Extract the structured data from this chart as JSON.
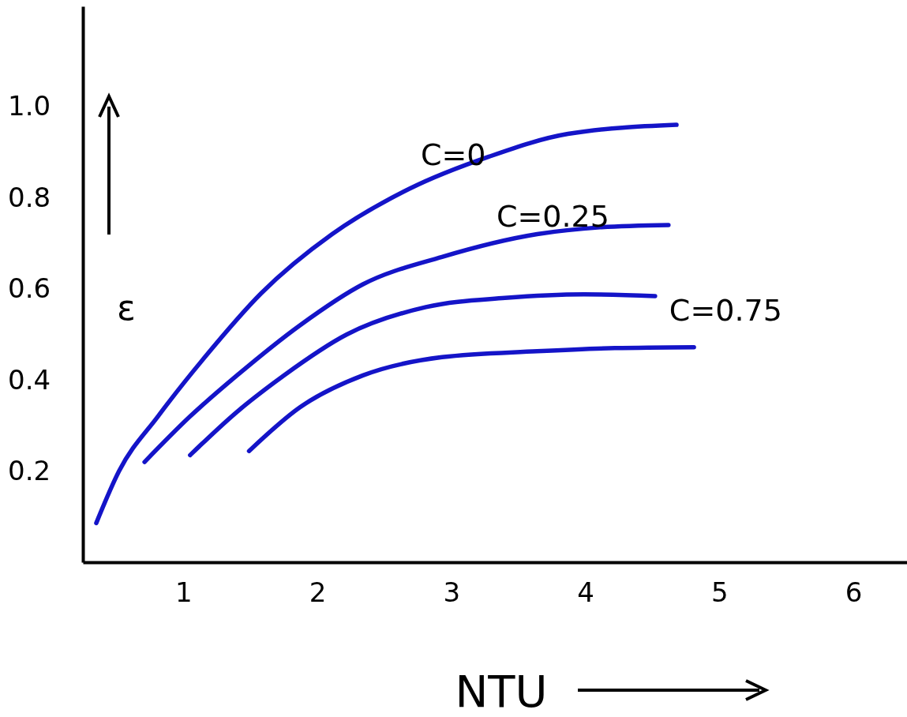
{
  "chart_data": {
    "type": "line",
    "xlabel": "NTU",
    "ylabel": "ε",
    "xlim": [
      0.25,
      6.4
    ],
    "ylim": [
      0,
      1.22
    ],
    "xticks": [
      1,
      2,
      3,
      4,
      5,
      6
    ],
    "yticks": [
      0.2,
      0.4,
      0.6,
      0.8,
      {
        "value": 1,
        "label": "1.0"
      }
    ],
    "grid": false,
    "marker": "none",
    "line_style": "solid",
    "series": [
      {
        "name": "C=0",
        "color": "#1414c8",
        "x": [
          0.35,
          0.52,
          0.81,
          1.16,
          1.58,
          2.11,
          2.69,
          3.28,
          3.87,
          4.68
        ],
        "values": [
          0.086,
          0.2,
          0.32,
          0.45,
          0.59,
          0.72,
          0.82,
          0.89,
          0.94,
          0.96
        ]
      },
      {
        "name": "C=0.25",
        "color": "#1414c8",
        "x": [
          0.71,
          1.05,
          1.4,
          1.87,
          2.34,
          2.93,
          3.64,
          4.11,
          4.62
        ],
        "values": [
          0.22,
          0.32,
          0.41,
          0.52,
          0.61,
          0.67,
          0.72,
          0.735,
          0.74
        ]
      },
      {
        "name": "C=0.75",
        "color": "#1414c8",
        "x": [
          1.05,
          1.4,
          1.75,
          2.22,
          2.81,
          3.4,
          3.99,
          4.52
        ],
        "values": [
          0.235,
          0.33,
          0.41,
          0.5,
          0.56,
          0.58,
          0.588,
          0.584
        ]
      },
      {
        "color": "#1414c8",
        "x": [
          1.49,
          1.87,
          2.34,
          2.93,
          3.64,
          4.22,
          4.81
        ],
        "values": [
          0.244,
          0.34,
          0.41,
          0.45,
          0.463,
          0.47,
          0.472
        ]
      }
    ]
  }
}
